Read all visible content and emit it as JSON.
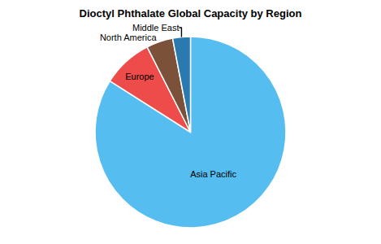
{
  "chart_data": {
    "type": "pie",
    "title": "Dioctyl Phthalate Global Capacity by Region",
    "categories": [
      "Asia Pacific",
      "Europe",
      "North America",
      "Middle East"
    ],
    "values": [
      84,
      8.5,
      4.5,
      3
    ],
    "colors": [
      "#56bdf0",
      "#ee4b4b",
      "#7b5239",
      "#2a7ab0"
    ]
  }
}
